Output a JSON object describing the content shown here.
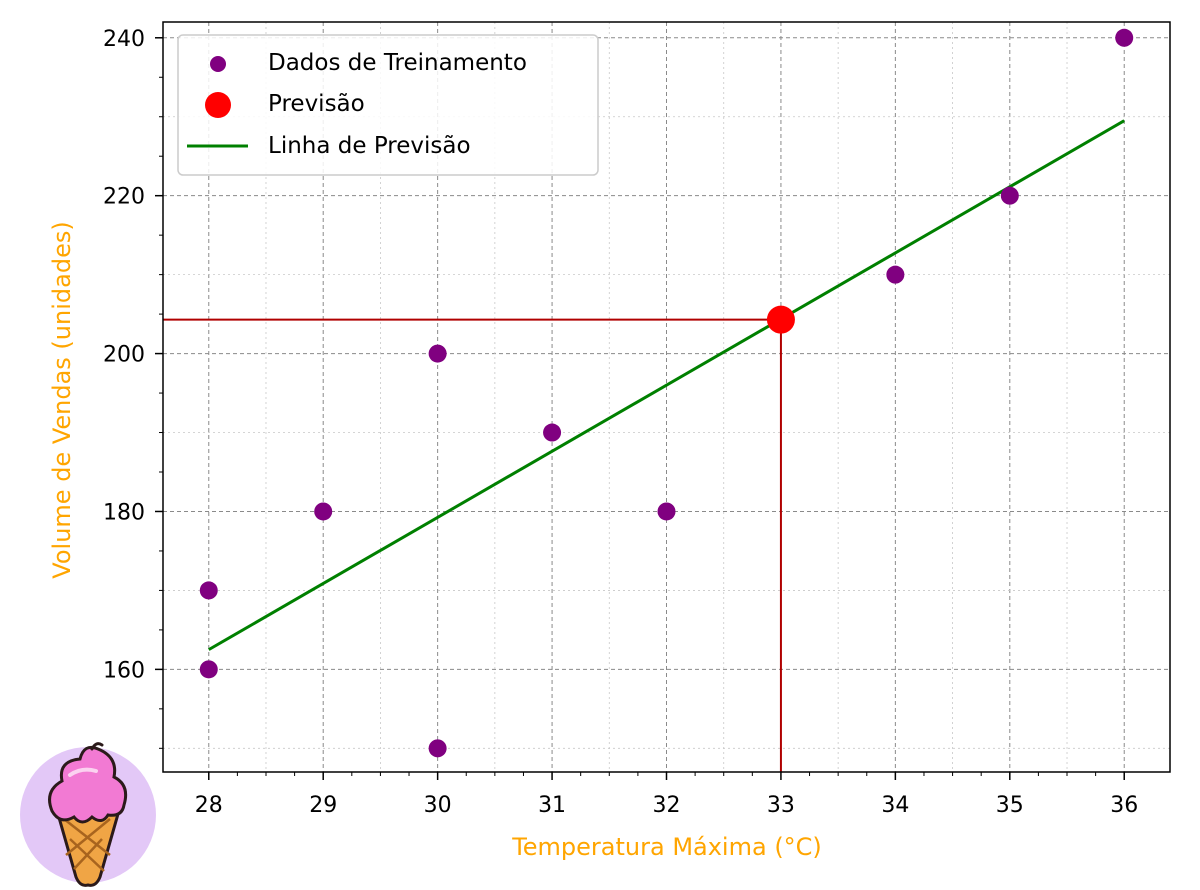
{
  "chart_data": {
    "type": "scatter",
    "title": "",
    "xlabel": "Temperatura Máxima (°C)",
    "ylabel": "Volume de Vendas (unidades)",
    "xlim": [
      27.6,
      36.4
    ],
    "ylim": [
      147,
      242
    ],
    "xticks": [
      28,
      29,
      30,
      31,
      32,
      33,
      34,
      35,
      36
    ],
    "yticks": [
      160,
      180,
      200,
      220,
      240
    ],
    "grid": true,
    "legend_position": "top-left",
    "colors": {
      "training": "#800080",
      "prediction": "#ff0000",
      "line": "#008000",
      "guide": "#b00000",
      "axis_label": "#ffa500"
    },
    "series": [
      {
        "name": "Dados de Treinamento",
        "kind": "scatter",
        "points": [
          [
            28,
            160
          ],
          [
            28,
            170
          ],
          [
            29,
            180
          ],
          [
            30,
            150
          ],
          [
            30,
            200
          ],
          [
            31,
            190
          ],
          [
            32,
            180
          ],
          [
            34,
            210
          ],
          [
            35,
            220
          ],
          [
            36,
            240
          ]
        ]
      },
      {
        "name": "Previsão",
        "kind": "scatter",
        "points": [
          [
            33,
            204.3
          ]
        ]
      },
      {
        "name": "Linha de Previsão",
        "kind": "line",
        "points": [
          [
            28,
            162.5
          ],
          [
            36,
            229.5
          ]
        ]
      }
    ],
    "guide_point": [
      33,
      204.3
    ]
  },
  "logo": {
    "icon": "ice-cream-cone-icon"
  }
}
